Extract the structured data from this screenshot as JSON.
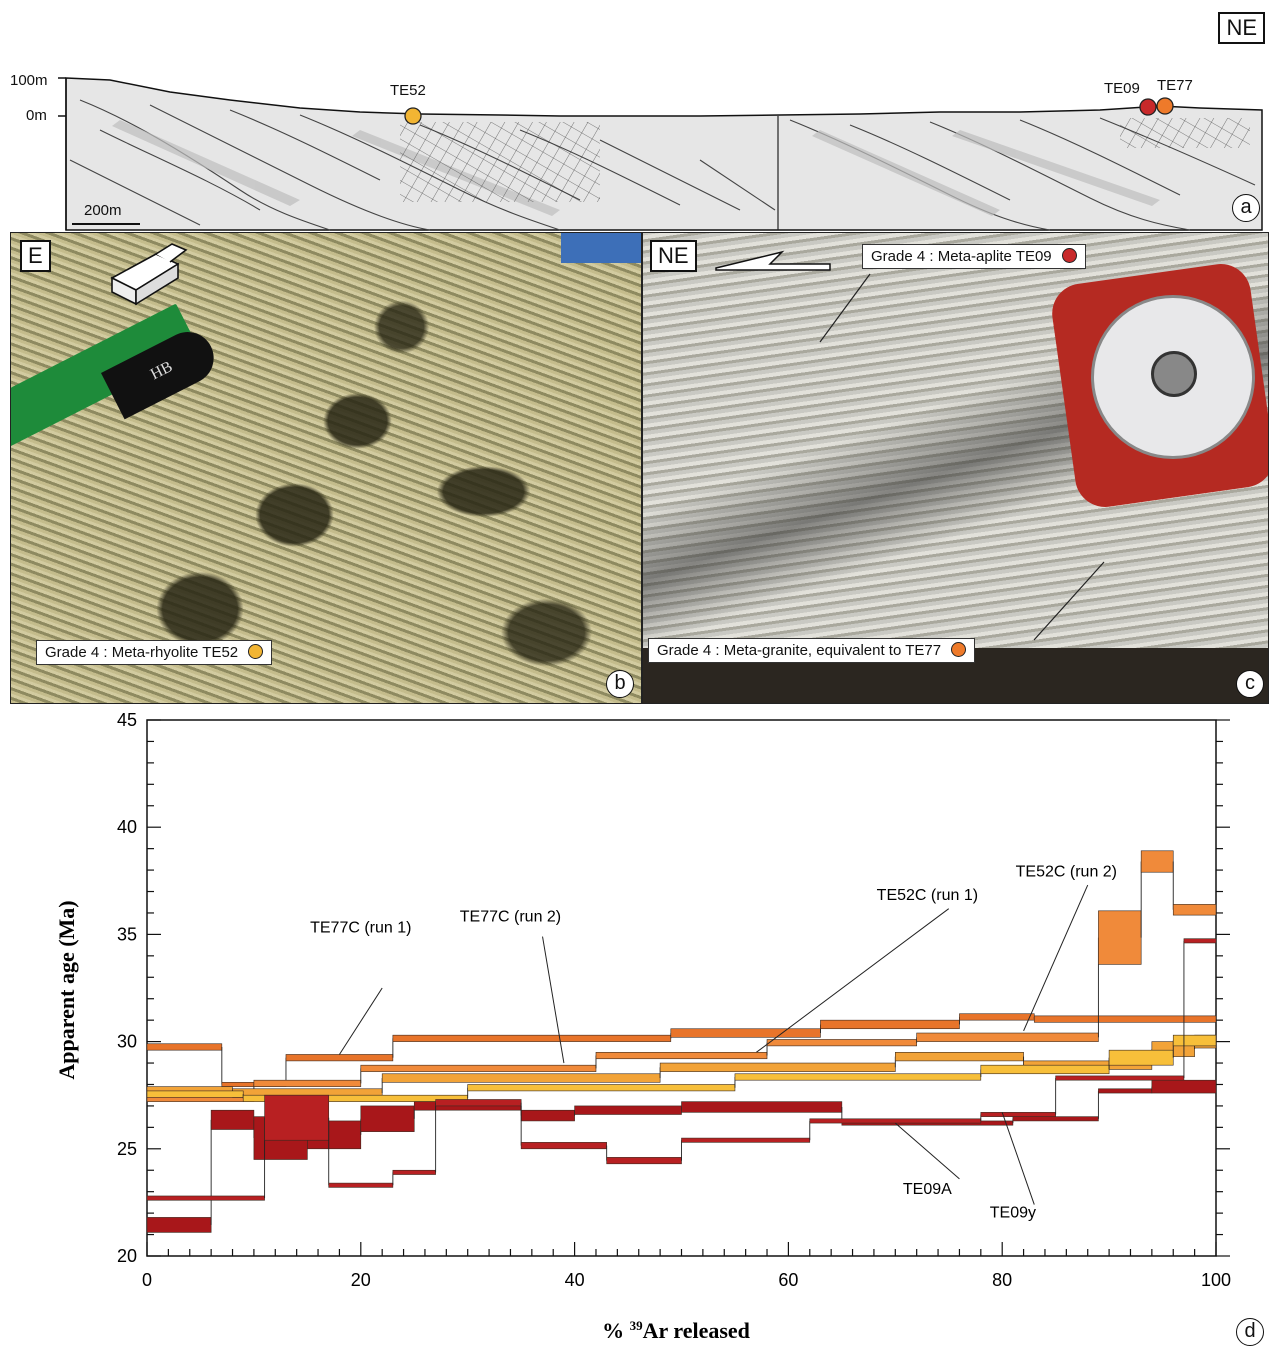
{
  "corner_label": "NE",
  "section": {
    "elev_labels": [
      "100m",
      "0m"
    ],
    "scale_label": "200m",
    "samples": [
      {
        "name": "TE52",
        "color": "#f2b533"
      },
      {
        "name": "TE09",
        "color": "#c8292a"
      },
      {
        "name": "TE77",
        "color": "#ee7a2a"
      }
    ],
    "panel_letter": "a"
  },
  "photo_b": {
    "orientation": "E",
    "caption": "Grade 4 : Meta-rhyolite TE52",
    "caption_dot_color": "#f2b533",
    "pencil_text": "HB",
    "panel_letter": "b"
  },
  "photo_c": {
    "orientation": "NE",
    "caption_top": "Grade 4 : Meta-aplite TE09",
    "caption_top_dot_color": "#c8292a",
    "caption_bottom": "Grade 4 : Meta-granite, equivalent to TE77",
    "caption_bottom_dot_color": "#ee7a2a",
    "panel_letter": "c"
  },
  "chart_data": {
    "type": "line",
    "xlabel": "% 39Ar released",
    "xlabel_main": "% ",
    "xlabel_sup": "39",
    "xlabel_tail": "Ar released",
    "ylabel": "Apparent age (Ma)",
    "xlim": [
      0,
      100
    ],
    "ylim": [
      20,
      45
    ],
    "x_ticks": [
      0,
      20,
      40,
      60,
      80,
      100
    ],
    "y_ticks": [
      20,
      25,
      30,
      35,
      40,
      45
    ],
    "panel_letter": "d",
    "series": [
      {
        "name": "TE77C (run 1)",
        "color": "#e8742a",
        "steps": [
          [
            0,
            7,
            29.6,
            29.9
          ],
          [
            7,
            13,
            27.9,
            28.1
          ],
          [
            13,
            23,
            29.1,
            29.4
          ],
          [
            23,
            49,
            30.0,
            30.3
          ],
          [
            49,
            63,
            30.2,
            30.6
          ],
          [
            63,
            76,
            30.6,
            31.0
          ],
          [
            76,
            83,
            31.0,
            31.3
          ],
          [
            83,
            100,
            30.9,
            31.2
          ]
        ]
      },
      {
        "name": "TE77C (run 2)",
        "color": "#f08a3a",
        "steps": [
          [
            0,
            10,
            27.2,
            27.5
          ],
          [
            10,
            20,
            27.9,
            28.2
          ],
          [
            20,
            42,
            28.6,
            28.9
          ],
          [
            42,
            58,
            29.2,
            29.5
          ],
          [
            58,
            72,
            29.8,
            30.1
          ],
          [
            72,
            89,
            30.0,
            30.4
          ],
          [
            89,
            93,
            33.6,
            36.1
          ],
          [
            93,
            96,
            37.9,
            38.9
          ],
          [
            96,
            100,
            35.9,
            36.4
          ]
        ]
      },
      {
        "name": "TE52C (run 1)",
        "color": "#f2a338",
        "steps": [
          [
            0,
            8,
            27.6,
            27.9
          ],
          [
            8,
            22,
            27.4,
            27.8
          ],
          [
            22,
            48,
            28.1,
            28.5
          ],
          [
            48,
            70,
            28.6,
            29.0
          ],
          [
            70,
            82,
            29.1,
            29.5
          ],
          [
            82,
            94,
            28.7,
            29.1
          ],
          [
            94,
            98,
            29.3,
            30.0
          ],
          [
            98,
            100,
            29.7,
            30.3
          ]
        ]
      },
      {
        "name": "TE52C (run 2)",
        "color": "#f7bf3a",
        "steps": [
          [
            0,
            9,
            27.4,
            27.7
          ],
          [
            9,
            30,
            27.2,
            27.5
          ],
          [
            30,
            55,
            27.7,
            28.0
          ],
          [
            55,
            78,
            28.2,
            28.5
          ],
          [
            78,
            90,
            28.5,
            28.9
          ],
          [
            90,
            96,
            28.9,
            29.6
          ],
          [
            96,
            100,
            29.8,
            30.3
          ]
        ]
      },
      {
        "name": "TE09A",
        "color": "#a8171a",
        "steps": [
          [
            0,
            6,
            21.1,
            21.8
          ],
          [
            6,
            10,
            25.9,
            26.8
          ],
          [
            10,
            15,
            24.5,
            26.5
          ],
          [
            15,
            20,
            25.0,
            26.3
          ],
          [
            20,
            25,
            25.8,
            27.0
          ],
          [
            25,
            35,
            26.8,
            27.2
          ],
          [
            35,
            40,
            26.3,
            26.8
          ],
          [
            40,
            50,
            26.6,
            27.0
          ],
          [
            50,
            65,
            26.7,
            27.2
          ],
          [
            65,
            81,
            26.1,
            26.3
          ],
          [
            81,
            89,
            26.3,
            26.5
          ],
          [
            89,
            94,
            27.6,
            27.8
          ],
          [
            94,
            100,
            27.6,
            28.2
          ]
        ]
      },
      {
        "name": "TE09y",
        "color": "#b82022",
        "steps": [
          [
            0,
            11,
            22.6,
            22.8
          ],
          [
            11,
            17,
            25.4,
            27.5
          ],
          [
            17,
            23,
            23.2,
            23.4
          ],
          [
            23,
            27,
            23.8,
            24.0
          ],
          [
            27,
            35,
            27.0,
            27.3
          ],
          [
            35,
            43,
            25.0,
            25.3
          ],
          [
            43,
            50,
            24.3,
            24.6
          ],
          [
            50,
            62,
            25.3,
            25.5
          ],
          [
            62,
            78,
            26.2,
            26.4
          ],
          [
            78,
            85,
            26.5,
            26.7
          ],
          [
            85,
            97,
            28.2,
            28.4
          ],
          [
            97,
            100,
            34.6,
            34.8
          ]
        ]
      }
    ],
    "annotations": [
      {
        "text": "TE77C (run 1)",
        "x": 20,
        "y": 35.1
      },
      {
        "text": "TE77C (run 2)",
        "x": 34,
        "y": 35.6
      },
      {
        "text": "TE52C (run 1)",
        "x": 73,
        "y": 36.6
      },
      {
        "text": "TE52C (run 2)",
        "x": 86,
        "y": 37.7
      },
      {
        "text": "TE09A",
        "x": 73,
        "y": 22.9
      },
      {
        "text": "TE09y",
        "x": 81,
        "y": 21.8
      }
    ]
  }
}
